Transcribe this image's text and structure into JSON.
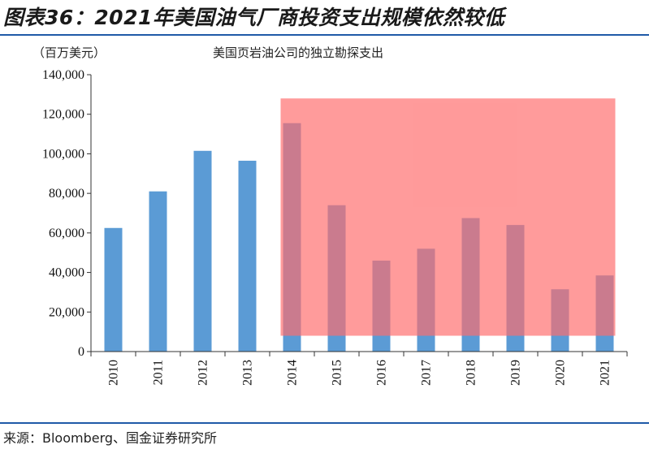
{
  "figure": {
    "title": "图表36：2021年美国油气厂商投资支出规模依然较低",
    "source": "来源：Bloomberg、国金证券研究所"
  },
  "chart_data": {
    "type": "bar",
    "title": "美国页岩油公司的独立勘探支出",
    "ylabel": "（百万美元）",
    "xlabel": "",
    "categories": [
      "2010",
      "2011",
      "2012",
      "2013",
      "2014",
      "2015",
      "2016",
      "2017",
      "2018",
      "2019",
      "2020",
      "2021"
    ],
    "series": [
      {
        "values": [
          62500,
          81000,
          101500,
          96500,
          115500,
          74000,
          46000,
          52000,
          67500,
          64000,
          31500,
          38500
        ]
      }
    ],
    "ylim": [
      0,
      140000
    ],
    "yticks": [
      0,
      20000,
      40000,
      60000,
      80000,
      100000,
      120000,
      140000
    ],
    "ytick_labels": [
      "0",
      "20,000",
      "40,000",
      "60,000",
      "80,000",
      "100,000",
      "120,000",
      "140,000"
    ],
    "grid": false,
    "legend": "none",
    "colors": {
      "bar": "#5b9bd5",
      "highlight": "#ff6b6b",
      "rule": "#1f5aa8"
    },
    "highlight_region": {
      "x_start": "2014",
      "x_end": "2021",
      "y_range": [
        8000,
        128000
      ]
    }
  }
}
